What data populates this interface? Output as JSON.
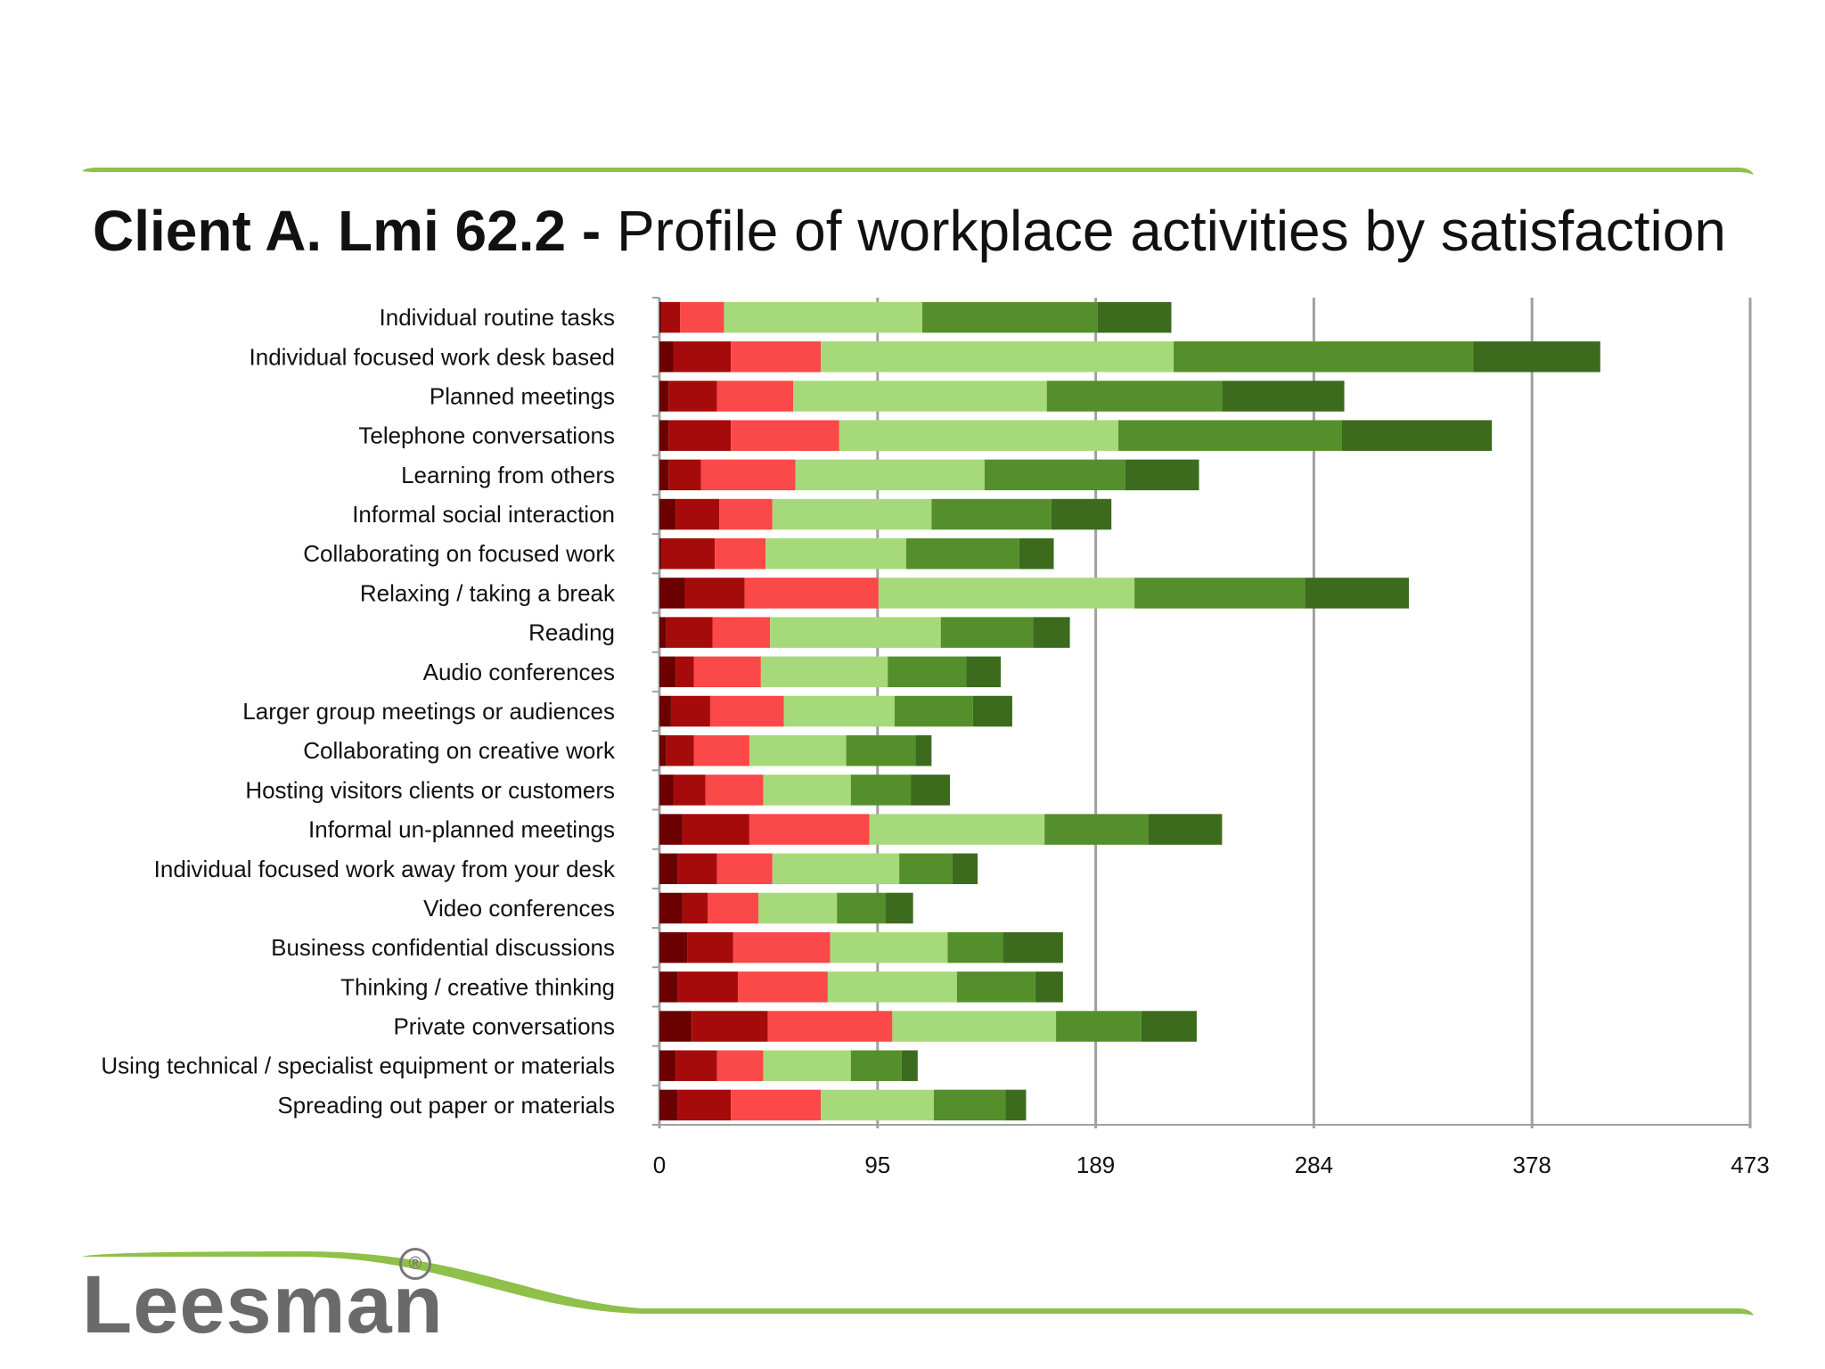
{
  "header": {
    "title_bold": "Client A. Lmi 62.2 -",
    "title_rest": "Profile of workplace activities by satisfaction"
  },
  "logo": {
    "text": "Leesman",
    "mark": "®"
  },
  "colors": {
    "accent_green": "#8fc04a",
    "segments": [
      "#6b0000",
      "#a60b0b",
      "#fb4848",
      "#a6d97a",
      "#558f2c",
      "#3c6b1e"
    ],
    "grid": "#a0a0a0"
  },
  "chart_data": {
    "type": "bar",
    "orientation": "horizontal",
    "stacked": true,
    "xlim": [
      0,
      473
    ],
    "x_ticks": [
      "0",
      "95",
      "189",
      "284",
      "378",
      "473"
    ],
    "grid": true,
    "categories": [
      "Individual routine tasks",
      "Individual focused work desk based",
      "Planned meetings",
      "Telephone conversations",
      "Learning from others",
      "Informal social interaction",
      "Collaborating on focused work",
      "Relaxing / taking a break",
      "Reading",
      "Audio conferences",
      "Larger group meetings or audiences",
      "Collaborating on creative work",
      "Hosting visitors clients or customers",
      "Informal un-planned meetings",
      "Individual focused work away from your desk",
      "Video conferences",
      "Business confidential discussions",
      "Thinking / creative thinking",
      "Private conversations",
      "Using technical / specialist equipment or materials",
      "Spreading out paper or materials"
    ],
    "series": [
      {
        "values": [
          1,
          6,
          4,
          4,
          4,
          7,
          1,
          11,
          3,
          7,
          5,
          3,
          6,
          10,
          8,
          10,
          12,
          8,
          14,
          7,
          8
        ]
      },
      {
        "values": [
          8,
          25,
          21,
          27,
          14,
          19,
          23,
          26,
          20,
          8,
          17,
          12,
          14,
          29,
          17,
          11,
          20,
          26,
          33,
          18,
          23
        ]
      },
      {
        "values": [
          19,
          39,
          33,
          47,
          41,
          23,
          22,
          58,
          25,
          29,
          32,
          24,
          25,
          52,
          24,
          22,
          42,
          39,
          54,
          20,
          39
        ]
      },
      {
        "values": [
          86,
          153,
          110,
          121,
          82,
          69,
          61,
          111,
          74,
          55,
          48,
          42,
          38,
          76,
          55,
          34,
          51,
          56,
          71,
          38,
          49
        ]
      },
      {
        "values": [
          76,
          130,
          76,
          97,
          61,
          52,
          49,
          74,
          40,
          34,
          34,
          30,
          26,
          45,
          23,
          21,
          24,
          34,
          37,
          22,
          31
        ]
      },
      {
        "values": [
          32,
          55,
          53,
          65,
          32,
          26,
          15,
          45,
          16,
          15,
          17,
          7,
          17,
          32,
          11,
          12,
          26,
          12,
          24,
          7,
          9
        ]
      }
    ]
  }
}
